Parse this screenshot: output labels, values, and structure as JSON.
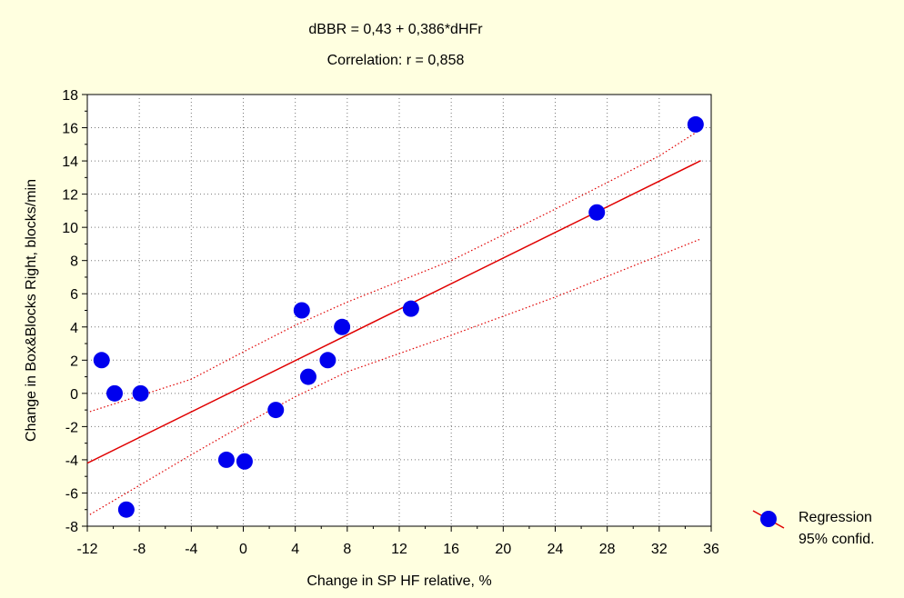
{
  "chart_data": {
    "type": "scatter",
    "title": "dBBR = 0,43 + 0,386*dHFr",
    "subtitle": "Correlation: r = 0,858",
    "xlabel": "Change in SP HF relative, %",
    "ylabel": "Change in Box&Blocks Right, blocks/min",
    "xlim": [
      -12,
      36
    ],
    "ylim": [
      -8,
      18
    ],
    "xticks": [
      "-12",
      "-8",
      "-4",
      "0",
      "4",
      "8",
      "12",
      "16",
      "20",
      "24",
      "28",
      "32",
      "36"
    ],
    "yticks": [
      "-8",
      "-6",
      "-4",
      "-2",
      "0",
      "2",
      "4",
      "6",
      "8",
      "10",
      "12",
      "14",
      "16",
      "18"
    ],
    "grid": true,
    "legend_position": "bottom-right",
    "legend": [
      "Regression",
      "95% confid."
    ],
    "regression": {
      "intercept": 0.43,
      "slope": 0.386
    },
    "points": [
      {
        "x": -10.9,
        "y": 2
      },
      {
        "x": -9.9,
        "y": 0
      },
      {
        "x": -7.9,
        "y": 0
      },
      {
        "x": -9.0,
        "y": -7
      },
      {
        "x": -1.3,
        "y": -4
      },
      {
        "x": 0.1,
        "y": -4.1
      },
      {
        "x": 2.5,
        "y": -1
      },
      {
        "x": 4.5,
        "y": 5
      },
      {
        "x": 5.0,
        "y": 1
      },
      {
        "x": 6.5,
        "y": 2
      },
      {
        "x": 7.6,
        "y": 4
      },
      {
        "x": 12.9,
        "y": 5.1
      },
      {
        "x": 27.2,
        "y": 10.9
      },
      {
        "x": 34.8,
        "y": 16.2
      }
    ],
    "confidence_upper": [
      {
        "x": -11.8,
        "y": -1.1
      },
      {
        "x": -4,
        "y": 0.85
      },
      {
        "x": 0,
        "y": 2.5
      },
      {
        "x": 4,
        "y": 4.1
      },
      {
        "x": 8,
        "y": 5.5
      },
      {
        "x": 16,
        "y": 8.0
      },
      {
        "x": 24,
        "y": 11.1
      },
      {
        "x": 32,
        "y": 14.3
      },
      {
        "x": 35.2,
        "y": 15.9
      }
    ],
    "confidence_lower": [
      {
        "x": -11.8,
        "y": -7.3
      },
      {
        "x": -4,
        "y": -3.7
      },
      {
        "x": 0,
        "y": -1.9
      },
      {
        "x": 4,
        "y": -0.2
      },
      {
        "x": 8,
        "y": 1.3
      },
      {
        "x": 16,
        "y": 3.5
      },
      {
        "x": 24,
        "y": 5.8
      },
      {
        "x": 32,
        "y": 8.3
      },
      {
        "x": 35.2,
        "y": 9.3
      }
    ],
    "colors": {
      "points": "#0000ee",
      "regression_line": "#e00000",
      "background": "#ffffe0"
    }
  }
}
